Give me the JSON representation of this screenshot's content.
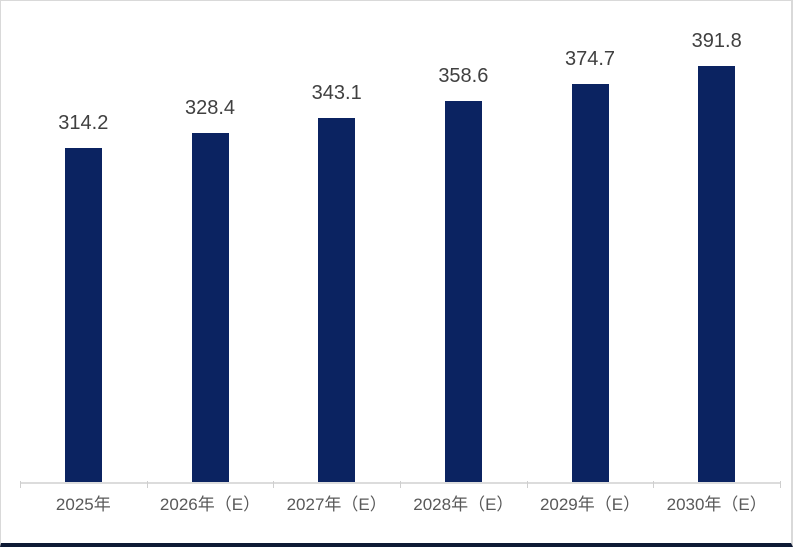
{
  "chart_data": {
    "type": "bar",
    "title": "",
    "xlabel": "",
    "ylabel": "",
    "categories": [
      "2025年",
      "2026年（E）",
      "2027年（E）",
      "2028年（E）",
      "2029年（E）",
      "2030年（E）"
    ],
    "values": [
      314.2,
      328.4,
      343.1,
      358.6,
      374.7,
      391.8
    ],
    "data_labels": [
      "314.2",
      "328.4",
      "343.1",
      "358.6",
      "374.7",
      "391.8"
    ],
    "ylim": [
      0,
      450
    ],
    "grid": false,
    "legend": false,
    "bar_color": "#0B2361",
    "axis_line_color": "#DCDCDC",
    "data_label_color": "#404040",
    "category_label_color": "#595959",
    "frame_border_color": "#D9D9D9",
    "bottom_bar_color": "#0E1A35"
  }
}
